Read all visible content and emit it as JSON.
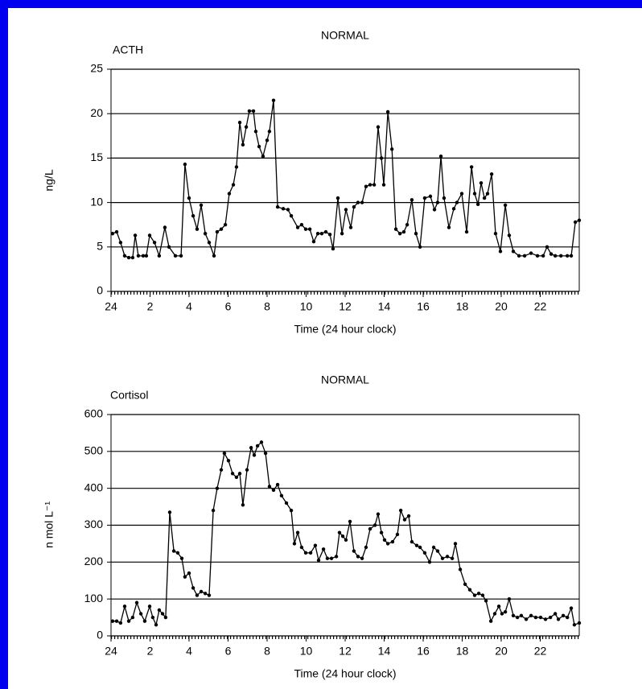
{
  "chart_data": [
    {
      "type": "line",
      "title": "NORMAL",
      "xlabel": "Time (24 hour clock)",
      "ylabel": "ng/L",
      "xlim": [
        0,
        24
      ],
      "xticks": [
        {
          "value": 0,
          "label": "24"
        },
        2,
        4,
        6,
        8,
        10,
        12,
        14,
        16,
        18,
        20,
        22
      ],
      "ylim": [
        0,
        25
      ],
      "yticks": [
        0,
        5,
        10,
        15,
        20,
        25
      ],
      "grid": true,
      "series": [
        {
          "name": "ACTH",
          "color": "#000000",
          "x": [
            0.08,
            0.29,
            0.49,
            0.7,
            0.91,
            1.11,
            1.24,
            1.4,
            1.65,
            1.81,
            1.98,
            2.23,
            2.47,
            2.76,
            2.97,
            3.3,
            3.59,
            3.79,
            4.0,
            4.21,
            4.41,
            4.62,
            4.83,
            5.03,
            5.28,
            5.44,
            5.65,
            5.86,
            6.06,
            6.27,
            6.43,
            6.6,
            6.76,
            6.93,
            7.09,
            7.3,
            7.42,
            7.59,
            7.79,
            8.0,
            8.12,
            8.33,
            8.54,
            8.83,
            9.07,
            9.24,
            9.57,
            9.77,
            9.98,
            10.19,
            10.39,
            10.6,
            10.8,
            11.01,
            11.22,
            11.38,
            11.63,
            11.84,
            12.04,
            12.29,
            12.45,
            12.66,
            12.87,
            13.07,
            13.28,
            13.49,
            13.69,
            13.86,
            13.98,
            14.19,
            14.4,
            14.6,
            14.81,
            15.01,
            15.18,
            15.42,
            15.63,
            15.84,
            16.08,
            16.37,
            16.58,
            16.74,
            16.91,
            17.07,
            17.32,
            17.57,
            17.73,
            17.98,
            18.23,
            18.48,
            18.64,
            18.81,
            18.97,
            19.14,
            19.3,
            19.51,
            19.71,
            19.96,
            20.21,
            20.41,
            20.62,
            20.91,
            21.2,
            21.53,
            21.86,
            22.15,
            22.35,
            22.56,
            22.77,
            23.06,
            23.39,
            23.59,
            23.8,
            24.0
          ],
          "values": [
            6.5,
            6.7,
            5.5,
            4,
            3.8,
            3.8,
            6.3,
            4,
            4,
            4,
            6.3,
            5.5,
            4,
            7.2,
            5,
            4,
            4,
            14.3,
            10.5,
            8.5,
            7,
            9.7,
            6.5,
            5.5,
            4,
            6.7,
            7,
            7.5,
            11,
            12,
            14,
            19,
            16.5,
            18.5,
            20.3,
            20.3,
            18,
            16.3,
            15.2,
            17,
            18,
            21.5,
            9.5,
            9.3,
            9.2,
            8.5,
            7.2,
            7.5,
            7,
            7,
            5.6,
            6.5,
            6.5,
            6.7,
            6.4,
            4.8,
            10.5,
            6.5,
            9.2,
            7.2,
            9.5,
            10,
            10,
            11.8,
            12,
            12,
            18.5,
            15,
            12,
            20.2,
            16,
            7,
            6.5,
            6.7,
            7.5,
            10.3,
            6.5,
            5,
            10.5,
            10.7,
            9.2,
            10,
            15.2,
            10.5,
            7.2,
            9.3,
            10,
            11,
            6.7,
            14,
            11,
            9.8,
            12.2,
            10.5,
            11,
            13.2,
            6.5,
            4.5,
            9.7,
            6.3,
            4.5,
            4,
            4,
            4.3,
            4,
            4,
            5,
            4.2,
            4,
            4,
            4,
            4,
            7.8,
            8
          ]
        }
      ]
    },
    {
      "type": "line",
      "title": "NORMAL",
      "xlabel": "Time (24 hour clock)",
      "ylabel": "n mol L⁻¹",
      "xlim": [
        0,
        24
      ],
      "xticks": [
        {
          "value": 0,
          "label": "24"
        },
        2,
        4,
        6,
        8,
        10,
        12,
        14,
        16,
        18,
        20,
        22
      ],
      "ylim": [
        0,
        600
      ],
      "yticks": [
        0,
        100,
        200,
        300,
        400,
        500,
        600
      ],
      "grid": true,
      "series": [
        {
          "name": "Cortisol",
          "color": "#000000",
          "x": [
            0.08,
            0.29,
            0.49,
            0.7,
            0.91,
            1.11,
            1.32,
            1.53,
            1.73,
            1.98,
            2.14,
            2.31,
            2.47,
            2.64,
            2.8,
            3.01,
            3.22,
            3.42,
            3.63,
            3.79,
            4.0,
            4.21,
            4.41,
            4.62,
            4.83,
            5.03,
            5.24,
            5.44,
            5.65,
            5.81,
            6.02,
            6.23,
            6.43,
            6.6,
            6.76,
            6.97,
            7.18,
            7.34,
            7.51,
            7.71,
            7.92,
            8.12,
            8.33,
            8.54,
            8.74,
            8.99,
            9.24,
            9.4,
            9.57,
            9.77,
            9.98,
            10.23,
            10.47,
            10.64,
            10.89,
            11.09,
            11.3,
            11.55,
            11.71,
            11.88,
            12.04,
            12.25,
            12.45,
            12.66,
            12.87,
            13.07,
            13.28,
            13.53,
            13.69,
            13.86,
            14.02,
            14.19,
            14.43,
            14.68,
            14.85,
            15.05,
            15.26,
            15.42,
            15.67,
            15.84,
            16.08,
            16.33,
            16.54,
            16.74,
            16.99,
            17.24,
            17.49,
            17.65,
            17.9,
            18.15,
            18.39,
            18.64,
            18.85,
            19.05,
            19.22,
            19.47,
            19.67,
            19.88,
            20.04,
            20.21,
            20.41,
            20.62,
            20.83,
            21.03,
            21.28,
            21.53,
            21.77,
            22.02,
            22.27,
            22.52,
            22.77,
            22.93,
            23.18,
            23.39,
            23.59,
            23.75,
            24.0
          ],
          "values": [
            40,
            40,
            35,
            80,
            40,
            50,
            90,
            60,
            40,
            80,
            50,
            30,
            70,
            60,
            50,
            335,
            230,
            225,
            210,
            160,
            170,
            130,
            110,
            120,
            115,
            110,
            340,
            400,
            450,
            495,
            475,
            440,
            430,
            440,
            355,
            450,
            510,
            490,
            515,
            525,
            495,
            405,
            395,
            410,
            380,
            360,
            340,
            250,
            280,
            240,
            225,
            225,
            245,
            205,
            235,
            210,
            210,
            215,
            280,
            270,
            260,
            310,
            230,
            215,
            210,
            240,
            290,
            300,
            330,
            280,
            260,
            250,
            255,
            275,
            340,
            315,
            325,
            255,
            245,
            240,
            225,
            200,
            240,
            230,
            210,
            215,
            210,
            250,
            180,
            140,
            125,
            110,
            115,
            110,
            95,
            40,
            60,
            80,
            60,
            65,
            100,
            55,
            50,
            55,
            45,
            55,
            50,
            50,
            45,
            50,
            60,
            45,
            55,
            50,
            75,
            30,
            35
          ]
        }
      ]
    }
  ]
}
